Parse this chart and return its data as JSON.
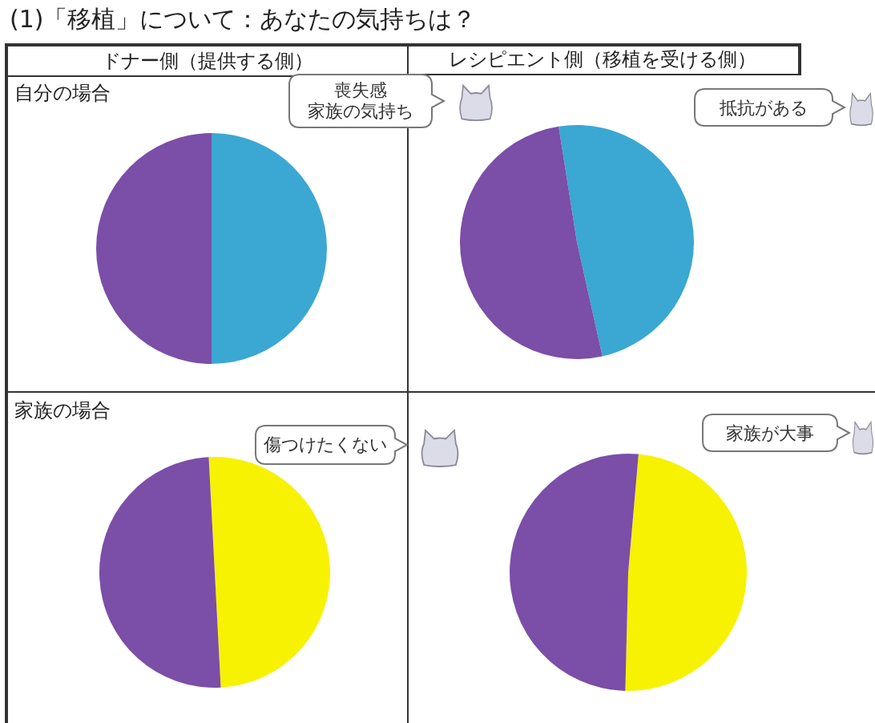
{
  "chart_data": [
    {
      "type": "other",
      "title": "(1)「移植」について：あなたの気持ちは？",
      "annotations": [
        "ドナー側（提供する側）",
        "レシピエント側（移植を受ける側）"
      ]
    },
    {
      "type": "pie",
      "title": "自分の場合",
      "categories": [
        null,
        null
      ],
      "values": [
        50,
        50
      ],
      "colors": [
        "#3ba7d3",
        "#7b4ea7"
      ],
      "annotations": [
        "喪失感",
        "家族の気持ち"
      ]
    },
    {
      "type": "pie",
      "categories": [
        null,
        null
      ],
      "values": [
        49,
        51
      ],
      "colors": [
        "#3ba7d3",
        "#7b4ea7"
      ],
      "annotations": [
        "抵抗がある"
      ]
    },
    {
      "type": "pie",
      "title": "家族の場合",
      "categories": [
        null,
        null
      ],
      "values": [
        50,
        50
      ],
      "colors": [
        "#f6f202",
        "#7b4ea7"
      ],
      "annotations": [
        "傷つけたくない"
      ]
    },
    {
      "type": "pie",
      "categories": [
        null,
        null
      ],
      "values": [
        49,
        51
      ],
      "colors": [
        "#f6f202",
        "#7b4ea7"
      ],
      "annotations": [
        "家族が大事"
      ]
    }
  ]
}
